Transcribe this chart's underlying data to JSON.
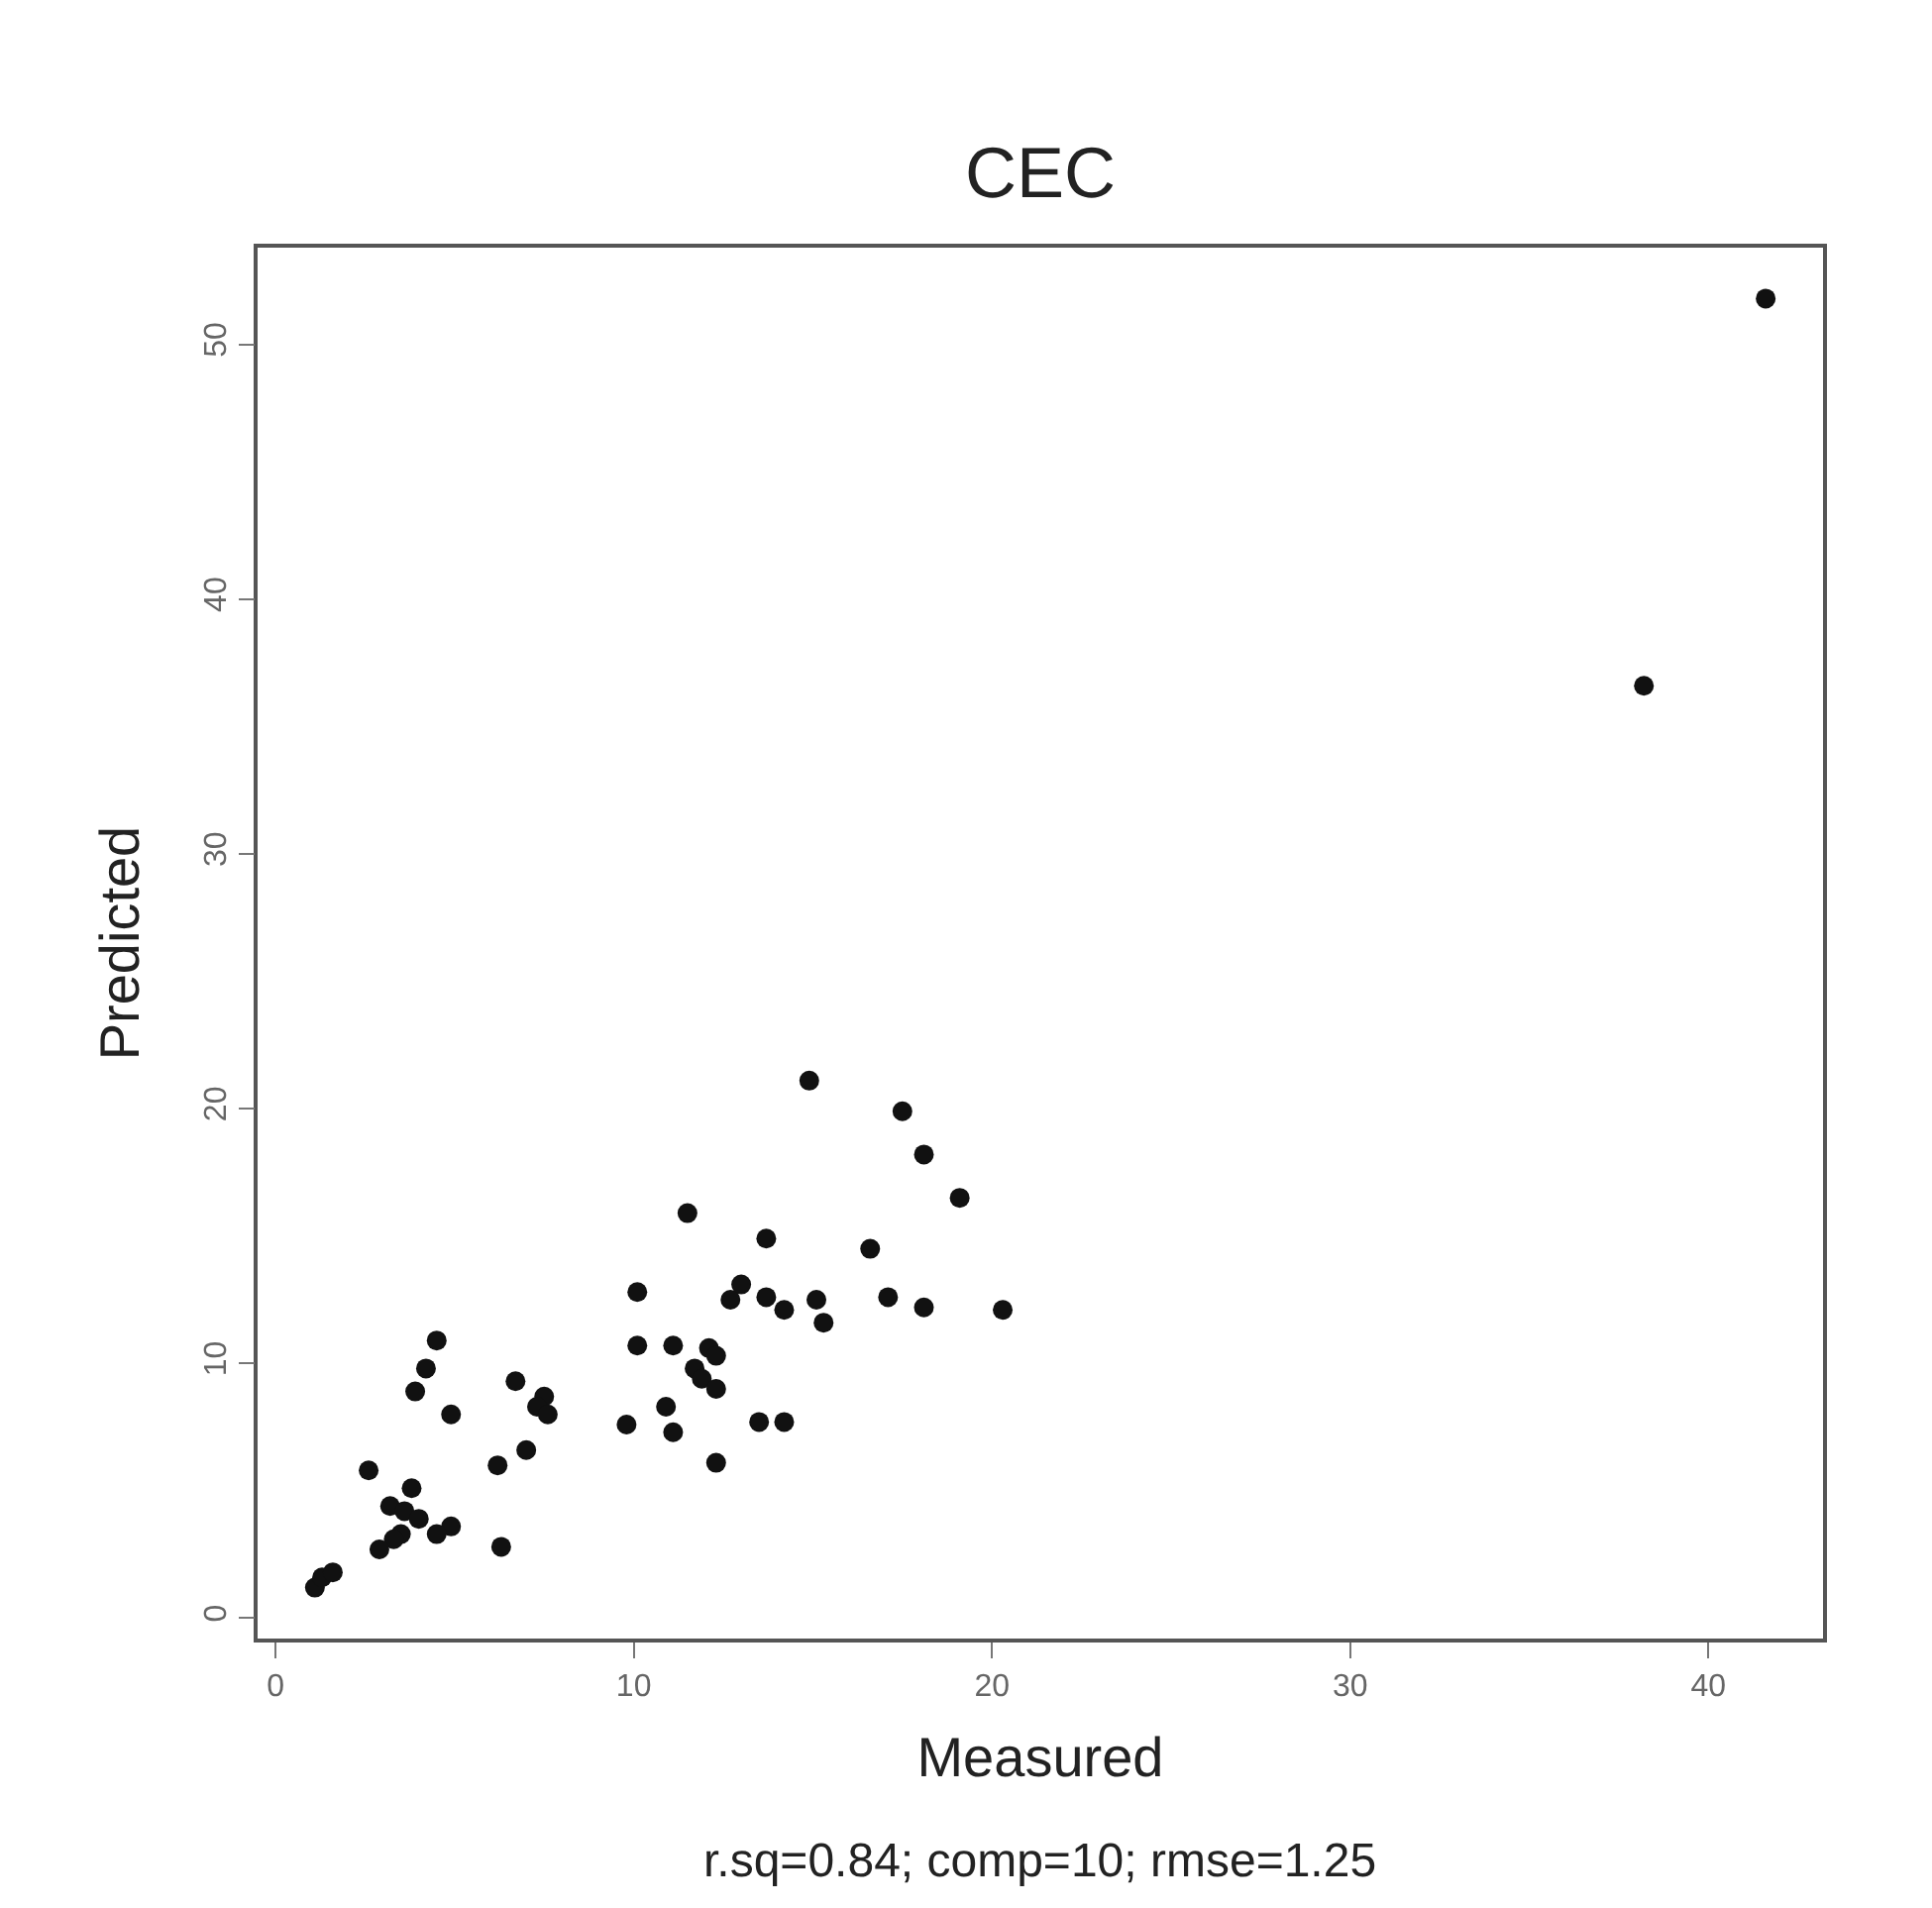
{
  "chart_data": {
    "type": "scatter",
    "title": "CEC",
    "xlabel": "Measured",
    "ylabel": "Predicted",
    "annotations": [
      "r.sq=0.84; comp=10; rmse=1.25"
    ],
    "xlim": [
      -0.5,
      43.2
    ],
    "ylim": [
      -0.8,
      53.8
    ],
    "xticks": [
      0,
      10,
      20,
      30,
      40
    ],
    "yticks": [
      0,
      10,
      20,
      30,
      40,
      50
    ],
    "marker": "circle",
    "series": [
      {
        "color": "#111111",
        "x": [
          41.6,
          38.2,
          14.9,
          17.5,
          18.1,
          19.1,
          11.5,
          13.7,
          16.6,
          10.1,
          13.0,
          12.7,
          13.7,
          14.2,
          15.1,
          15.3,
          17.1,
          18.1,
          20.3,
          10.1,
          11.1,
          12.1,
          12.3,
          11.7,
          11.9,
          12.3,
          10.9,
          11.1,
          9.8,
          13.5,
          14.2,
          12.3,
          4.5,
          4.2,
          3.9,
          4.9,
          6.7,
          7.5,
          7.3,
          7.6,
          7.0,
          6.2,
          6.3,
          2.6,
          3.8,
          3.2,
          3.6,
          4.0,
          4.9,
          4.5,
          3.5,
          3.3,
          2.9,
          1.1,
          1.3,
          1.6
        ],
        "values": [
          51.8,
          36.6,
          21.1,
          19.9,
          18.2,
          16.5,
          15.9,
          14.9,
          14.5,
          12.8,
          13.1,
          12.5,
          12.6,
          12.1,
          12.5,
          11.6,
          12.6,
          12.2,
          12.1,
          10.7,
          10.7,
          10.6,
          10.3,
          9.8,
          9.4,
          9.0,
          8.3,
          7.3,
          7.6,
          7.7,
          7.7,
          6.1,
          10.9,
          9.8,
          8.9,
          8.0,
          9.3,
          8.7,
          8.3,
          8.0,
          6.6,
          6.0,
          2.8,
          5.8,
          5.1,
          4.4,
          4.2,
          3.9,
          3.6,
          3.3,
          3.3,
          3.1,
          2.7,
          1.2,
          1.6,
          1.8
        ]
      }
    ]
  }
}
